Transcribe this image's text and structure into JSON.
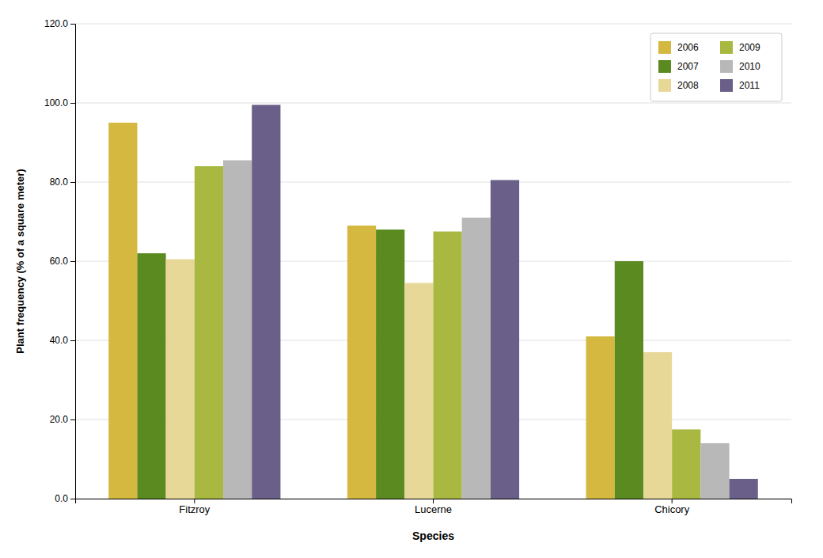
{
  "chart_data": {
    "type": "bar",
    "xlabel": "Species",
    "ylabel": "Plant frequency (% of a square meter)",
    "categories": [
      "Fitzroy",
      "Lucerne",
      "Chicory"
    ],
    "series": [
      {
        "name": "2006",
        "color": "#d4b840",
        "values": [
          95.0,
          69.0,
          41.0
        ]
      },
      {
        "name": "2007",
        "color": "#5a8a20",
        "values": [
          62.0,
          68.0,
          60.0
        ]
      },
      {
        "name": "2008",
        "color": "#e8d898",
        "values": [
          60.5,
          54.5,
          37.0
        ]
      },
      {
        "name": "2009",
        "color": "#a8b840",
        "values": [
          84.0,
          67.5,
          17.5
        ]
      },
      {
        "name": "2010",
        "color": "#b8b8b8",
        "values": [
          85.5,
          71.0,
          14.0
        ]
      },
      {
        "name": "2011",
        "color": "#6a5f88",
        "values": [
          99.5,
          80.5,
          5.0
        ]
      }
    ],
    "ylim": [
      0,
      120
    ],
    "yticks": [
      {
        "value": 0,
        "label": "0.0"
      },
      {
        "value": 20,
        "label": "20.0"
      },
      {
        "value": 40,
        "label": "40.0"
      },
      {
        "value": 60,
        "label": "60.0"
      },
      {
        "value": 80,
        "label": "80.0"
      },
      {
        "value": 100,
        "label": "100.0"
      },
      {
        "value": 120,
        "label": "120.0"
      }
    ],
    "grid": true,
    "legend": "upper right"
  }
}
